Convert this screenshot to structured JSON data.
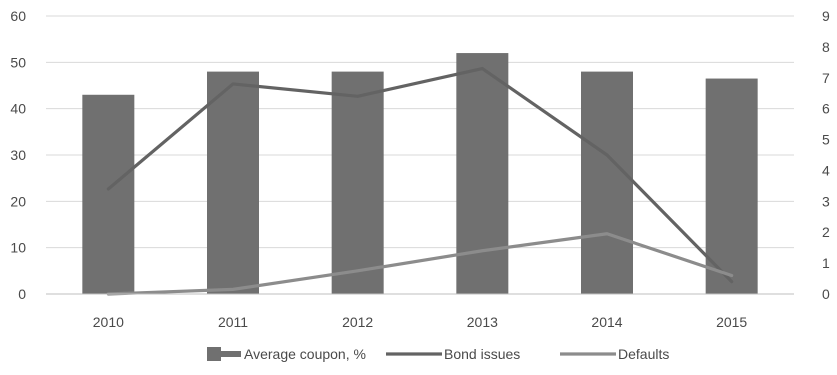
{
  "chart_data": {
    "type": "bar+line",
    "categories": [
      "2010",
      "2011",
      "2012",
      "2013",
      "2014",
      "2015"
    ],
    "bar_series": {
      "name": "Average coupon, %",
      "axis": "left",
      "values": [
        43,
        48,
        48,
        52,
        48,
        46.5
      ],
      "color": "#707070"
    },
    "line_series": [
      {
        "name": "Bond issues",
        "axis": "right",
        "values": [
          3.4,
          6.8,
          6.4,
          7.3,
          4.5,
          0.4
        ],
        "color": "#636363"
      },
      {
        "name": "Defaults",
        "axis": "right",
        "values": [
          0,
          0.15,
          0.75,
          1.4,
          1.95,
          0.6
        ],
        "color": "#8c8c8c"
      }
    ],
    "y_left": {
      "min": 0,
      "max": 60,
      "ticks": [
        "0",
        "10",
        "20",
        "30",
        "40",
        "50",
        "60"
      ]
    },
    "y_right": {
      "min": 0,
      "max": 9,
      "ticks": [
        "0",
        "1",
        "2",
        "3",
        "4",
        "5",
        "6",
        "7",
        "8",
        "9"
      ]
    },
    "grid": true,
    "legend_position": "bottom"
  }
}
